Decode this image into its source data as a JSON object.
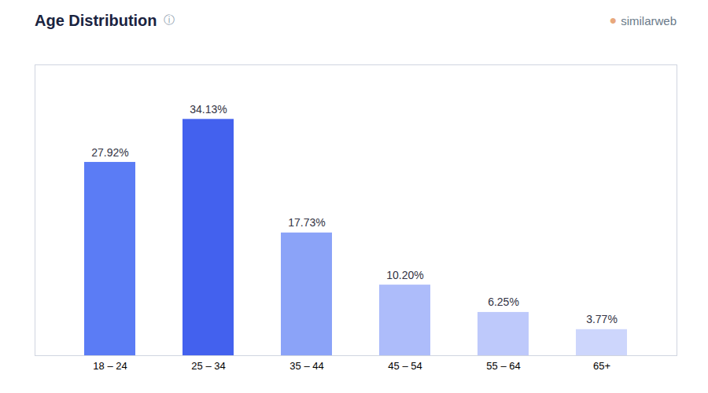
{
  "chart_data": {
    "type": "bar",
    "title": "Age Distribution",
    "categories": [
      "18 – 24",
      "25 – 34",
      "35 – 44",
      "45 – 54",
      "55 – 64",
      "65+"
    ],
    "values": [
      27.92,
      34.13,
      17.73,
      10.2,
      6.25,
      3.77
    ],
    "value_labels": [
      "27.92%",
      "34.13%",
      "17.73%",
      "10.20%",
      "6.25%",
      "3.77%"
    ],
    "colors": [
      "#5b7cf5",
      "#4361ee",
      "#8ba3f8",
      "#adbcfa",
      "#bec9fb",
      "#cdd6fc"
    ],
    "data_labels": true,
    "tick_labels": "x",
    "ylim": [
      0,
      42
    ],
    "annotations": [
      "ⓘ",
      "●",
      "similarweb"
    ]
  }
}
